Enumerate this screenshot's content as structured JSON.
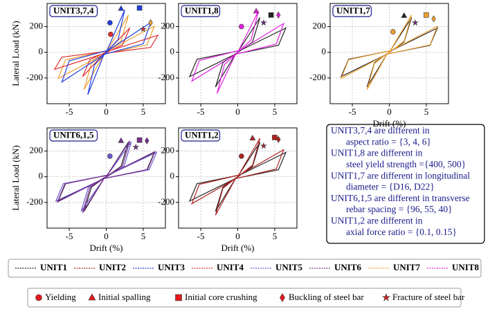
{
  "chart_data": [
    {
      "type": "line",
      "title": "UNIT3,7,4",
      "ylabel": "Lateral Load (kN)",
      "xlim": [
        -8,
        8
      ],
      "ylim": [
        -400,
        380
      ],
      "xticks": [
        -5,
        0,
        5
      ],
      "yticks": [
        -200,
        0,
        200
      ],
      "grid": true,
      "series": [
        {
          "color": "#f0a030",
          "x": [
            0,
            3,
            2,
            -0.3,
            -3,
            -2,
            0.3,
            6.5,
            5.5,
            -0.3,
            -6.5,
            -5.5,
            0.3
          ],
          "values": [
            0,
            290,
            87,
            -14.5,
            -290,
            -87,
            14.5,
            203,
            58,
            -14.5,
            -203,
            -58,
            14.5
          ]
        },
        {
          "color": "#e03030",
          "x": [
            0,
            3.2,
            2.2,
            -0.3,
            -3.2,
            -2.2,
            0.3,
            7,
            6,
            -0.3,
            -7,
            -6,
            0.3
          ],
          "values": [
            0,
            190,
            57,
            -9.5,
            -190,
            -57,
            9.5,
            133,
            38,
            -9.5,
            -133,
            -38,
            9.5
          ]
        },
        {
          "color": "#1f3fe0",
          "x": [
            0,
            2.5,
            1.6,
            -0.3,
            -2.5,
            -1.6,
            0.3,
            6,
            5,
            -0.3,
            -6,
            -5,
            0.3
          ],
          "values": [
            0,
            330,
            99,
            -16.5,
            -330,
            -99,
            16.5,
            231,
            66,
            -16.5,
            -231,
            -66,
            16.5
          ]
        }
      ],
      "markers": [
        {
          "shape": "circle",
          "color": "#1f3fe0",
          "x": 0.5,
          "y": 230
        },
        {
          "shape": "circle",
          "color": "#e03030",
          "x": 0.6,
          "y": 140
        },
        {
          "shape": "triangle",
          "color": "#1f3fe0",
          "x": 2,
          "y": 340
        },
        {
          "shape": "square",
          "color": "#1f3fe0",
          "x": 4.5,
          "y": 345
        },
        {
          "shape": "diamond",
          "color": "#f0a030",
          "x": 6,
          "y": 230
        },
        {
          "shape": "star",
          "color": "#e03030",
          "x": 5,
          "y": 180
        }
      ]
    },
    {
      "type": "line",
      "title": "UNIT1,8",
      "xlim": [
        -8,
        8
      ],
      "ylim": [
        -400,
        380
      ],
      "xticks": [
        -5,
        0,
        5
      ],
      "yticks": [
        -200,
        0,
        200
      ],
      "grid": true,
      "series": [
        {
          "color": "#222222",
          "x": [
            0,
            3,
            2,
            -0.3,
            -3,
            -2,
            0.3,
            6.5,
            5.5,
            -0.3,
            -6.5,
            -5.5,
            0.3
          ],
          "values": [
            0,
            270,
            81,
            -13.5,
            -270,
            -81,
            13.5,
            189,
            54,
            -13.5,
            -189,
            -54,
            13.5
          ]
        },
        {
          "color": "#e020e0",
          "x": [
            0,
            2.8,
            1.8,
            -0.3,
            -2.8,
            -1.8,
            0.3,
            6.2,
            5.2,
            -0.3,
            -6.2,
            -5.2,
            0.3
          ],
          "values": [
            0,
            320,
            96,
            -16,
            -320,
            -96,
            16,
            224,
            64,
            -16,
            -224,
            -64,
            16
          ]
        }
      ],
      "markers": [
        {
          "shape": "circle",
          "color": "#e020e0",
          "x": 0.5,
          "y": 200
        },
        {
          "shape": "triangle",
          "color": "#e020e0",
          "x": 2.5,
          "y": 320
        },
        {
          "shape": "square",
          "color": "#222222",
          "x": 4.5,
          "y": 290
        },
        {
          "shape": "diamond",
          "color": "#e020e0",
          "x": 5.5,
          "y": 290
        },
        {
          "shape": "star",
          "color": "#7b2d8e",
          "x": 3.5,
          "y": 230
        }
      ]
    },
    {
      "type": "line",
      "title": "UNIT1,7",
      "xlabel": "Drift (%)",
      "xlim": [
        -8,
        8
      ],
      "ylim": [
        -400,
        380
      ],
      "xticks": [
        -5,
        0,
        5
      ],
      "yticks": [
        -200,
        0,
        200
      ],
      "grid": true,
      "series": [
        {
          "color": "#222222",
          "x": [
            0,
            3,
            2,
            -0.3,
            -3,
            -2,
            0.3,
            6.5,
            5.5,
            -0.3,
            -6.5,
            -5.5,
            0.3
          ],
          "values": [
            0,
            270,
            81,
            -13.5,
            -270,
            -81,
            13.5,
            189,
            54,
            -13.5,
            -189,
            -54,
            13.5
          ]
        },
        {
          "color": "#f0a030",
          "x": [
            0,
            3,
            2,
            -0.3,
            -3,
            -2,
            0.3,
            6.5,
            5.5,
            -0.3,
            -6.5,
            -5.5,
            0.3
          ],
          "values": [
            0,
            290,
            87,
            -14.5,
            -290,
            -87,
            14.5,
            203,
            58,
            -14.5,
            -203,
            -58,
            14.5
          ]
        }
      ],
      "markers": [
        {
          "shape": "circle",
          "color": "#f0a030",
          "x": 0.5,
          "y": 160
        },
        {
          "shape": "triangle",
          "color": "#222222",
          "x": 2,
          "y": 285
        },
        {
          "shape": "square",
          "color": "#f0a030",
          "x": 5,
          "y": 290
        },
        {
          "shape": "diamond",
          "color": "#f0a030",
          "x": 6,
          "y": 260
        },
        {
          "shape": "star",
          "color": "#7b2d8e",
          "x": 3.5,
          "y": 230
        }
      ]
    },
    {
      "type": "line",
      "title": "UNIT6,1,5",
      "ylabel": "Lateral Load (kN)",
      "xlabel": "Drift (%)",
      "xlim": [
        -8,
        8
      ],
      "ylim": [
        -400,
        380
      ],
      "xticks": [
        -5,
        0,
        5
      ],
      "yticks": [
        -200,
        0,
        200
      ],
      "grid": true,
      "series": [
        {
          "color": "#222222",
          "x": [
            0,
            3,
            2,
            -0.3,
            -3,
            -2,
            0.3,
            6.5,
            5.5,
            -0.3,
            -6.5,
            -5.5,
            0.3
          ],
          "values": [
            0,
            270,
            81,
            -13.5,
            -270,
            -81,
            13.5,
            189,
            54,
            -13.5,
            -189,
            -54,
            13.5
          ]
        },
        {
          "color": "#6a5acd",
          "x": [
            0,
            3.4,
            2.4,
            -0.3,
            -3.4,
            -2.4,
            0.3,
            6.8,
            5.8,
            -0.3,
            -6.8,
            -5.8,
            0.3
          ],
          "values": [
            0,
            270,
            81,
            -13.5,
            -270,
            -81,
            13.5,
            189,
            54,
            -13.5,
            -189,
            -54,
            13.5
          ]
        },
        {
          "color": "#7b2d8e",
          "x": [
            0,
            3.2,
            2.2,
            -0.3,
            -3.2,
            -2.2,
            0.3,
            6.6,
            5.6,
            -0.3,
            -6.6,
            -5.6,
            0.3
          ],
          "values": [
            0,
            280,
            84,
            -14,
            -280,
            -84,
            14,
            196,
            56,
            -14,
            -196,
            -56,
            14
          ]
        }
      ],
      "markers": [
        {
          "shape": "circle",
          "color": "#6a5acd",
          "x": 0.5,
          "y": 160
        },
        {
          "shape": "triangle",
          "color": "#7b2d8e",
          "x": 2,
          "y": 280
        },
        {
          "shape": "square",
          "color": "#7b2d8e",
          "x": 4.5,
          "y": 285
        },
        {
          "shape": "diamond",
          "color": "#7b2d8e",
          "x": 5.5,
          "y": 280
        },
        {
          "shape": "star",
          "color": "#7b2d8e",
          "x": 4,
          "y": 230
        }
      ]
    },
    {
      "type": "line",
      "title": "UNIT1,2",
      "xlabel": "Drift (%)",
      "xlim": [
        -8,
        8
      ],
      "ylim": [
        -400,
        380
      ],
      "xticks": [
        -5,
        0,
        5
      ],
      "yticks": [
        -200,
        0,
        200
      ],
      "grid": true,
      "series": [
        {
          "color": "#222222",
          "x": [
            0,
            3,
            2,
            -0.3,
            -3,
            -2,
            0.3,
            6.5,
            5.5,
            -0.3,
            -6.5,
            -5.5,
            0.3
          ],
          "values": [
            0,
            270,
            81,
            -13.5,
            -270,
            -81,
            13.5,
            189,
            54,
            -13.5,
            -189,
            -54,
            13.5
          ]
        },
        {
          "color": "#b22222",
          "x": [
            0,
            3,
            2,
            -0.3,
            -3,
            -2,
            0.3,
            6.2,
            5.2,
            -0.3,
            -6.2,
            -5.2,
            0.3
          ],
          "values": [
            0,
            300,
            90,
            -15,
            -300,
            -90,
            15,
            210,
            60,
            -15,
            -210,
            -60,
            15
          ]
        }
      ],
      "markers": [
        {
          "shape": "circle",
          "color": "#b22222",
          "x": 0.5,
          "y": 160
        },
        {
          "shape": "triangle",
          "color": "#b22222",
          "x": 2,
          "y": 300
        },
        {
          "shape": "square",
          "color": "#b22222",
          "x": 5,
          "y": 305
        },
        {
          "shape": "diamond",
          "color": "#b22222",
          "x": 5.5,
          "y": 290
        },
        {
          "shape": "star",
          "color": "#b22222",
          "x": 3.5,
          "y": 240
        }
      ]
    }
  ],
  "notes": [
    "UNIT3,7,4 are different in",
    "aspect ratio = {3, 4, 6}",
    "UNIT1,8 are different in",
    "steel yield strength ={400, 500}",
    "UNIT1,7 are different in longitudinal",
    "diameter = {D16, D22}",
    "UNIT6,1,5 are different in transverse",
    "rebar spacing = {96, 55, 40}",
    "UNIT1,2 are different in",
    "axial force ratio = {0.1, 0.15}"
  ],
  "legend": [
    {
      "name": "UNIT1",
      "color": "#222222"
    },
    {
      "name": "UNIT2",
      "color": "#b22222"
    },
    {
      "name": "UNIT3",
      "color": "#1f3fe0"
    },
    {
      "name": "UNIT4",
      "color": "#e03030"
    },
    {
      "name": "UNIT5",
      "color": "#6a5acd"
    },
    {
      "name": "UNIT6",
      "color": "#7b2d8e"
    },
    {
      "name": "UNIT7",
      "color": "#f0a030"
    },
    {
      "name": "UNIT8",
      "color": "#e020e0"
    }
  ],
  "marker_legend": [
    {
      "name": "Yielding",
      "shape": "circle"
    },
    {
      "name": "Initial spalling",
      "shape": "triangle"
    },
    {
      "name": "Initial core crushing",
      "shape": "square"
    },
    {
      "name": "Buckling of steel bar",
      "shape": "diamond"
    },
    {
      "name": "Fracture of steel bar",
      "shape": "star"
    }
  ]
}
